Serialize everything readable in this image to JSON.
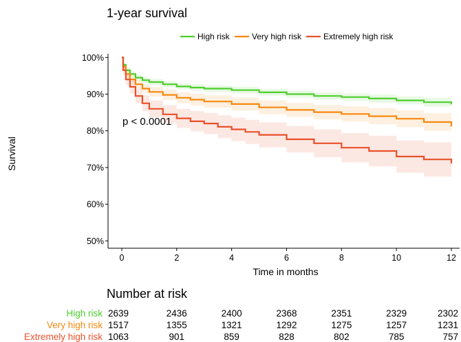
{
  "chart_data": {
    "type": "line",
    "title": "1-year survival",
    "xlabel": "Time in months",
    "ylabel": "Survival",
    "xlim": [
      -0.5,
      12.3
    ],
    "ylim": [
      0.48,
      1.01
    ],
    "x_ticks": [
      0,
      2,
      4,
      6,
      8,
      10,
      12
    ],
    "y_ticks": [
      0.5,
      0.6,
      0.7,
      0.8,
      0.9,
      1.0
    ],
    "y_tick_labels": [
      "50%",
      "60%",
      "70%",
      "80%",
      "90%",
      "100%"
    ],
    "legend_position": "top",
    "annotation": "p < 0.0001",
    "grid": false,
    "series": [
      {
        "name": "High risk",
        "color": "#4dce2d",
        "x": [
          0,
          0.05,
          0.15,
          0.3,
          0.5,
          0.75,
          1,
          1.5,
          2,
          2.5,
          3,
          4,
          5,
          6,
          7,
          8,
          9,
          10,
          11,
          12
        ],
        "y": [
          1.0,
          0.98,
          0.965,
          0.955,
          0.945,
          0.938,
          0.933,
          0.927,
          0.921,
          0.918,
          0.915,
          0.911,
          0.905,
          0.9,
          0.895,
          0.892,
          0.888,
          0.883,
          0.878,
          0.872
        ],
        "lower": [
          1.0,
          0.974,
          0.958,
          0.948,
          0.937,
          0.93,
          0.925,
          0.919,
          0.913,
          0.909,
          0.906,
          0.902,
          0.896,
          0.89,
          0.885,
          0.882,
          0.877,
          0.872,
          0.866,
          0.86
        ],
        "upper": [
          1.0,
          0.986,
          0.972,
          0.962,
          0.953,
          0.946,
          0.941,
          0.935,
          0.929,
          0.927,
          0.924,
          0.92,
          0.914,
          0.91,
          0.905,
          0.902,
          0.899,
          0.894,
          0.89,
          0.884
        ]
      },
      {
        "name": "Very high risk",
        "color": "#f6880f",
        "x": [
          0,
          0.05,
          0.15,
          0.3,
          0.5,
          0.75,
          1,
          1.5,
          2,
          2.5,
          3,
          4,
          5,
          6,
          7,
          8,
          9,
          10,
          11,
          12
        ],
        "y": [
          1.0,
          0.975,
          0.955,
          0.94,
          0.927,
          0.915,
          0.906,
          0.898,
          0.89,
          0.885,
          0.88,
          0.873,
          0.864,
          0.857,
          0.851,
          0.846,
          0.84,
          0.833,
          0.824,
          0.812
        ],
        "lower": [
          1.0,
          0.967,
          0.945,
          0.929,
          0.915,
          0.903,
          0.893,
          0.884,
          0.875,
          0.869,
          0.863,
          0.855,
          0.845,
          0.838,
          0.831,
          0.825,
          0.818,
          0.81,
          0.8,
          0.786
        ],
        "upper": [
          1.0,
          0.983,
          0.965,
          0.951,
          0.939,
          0.927,
          0.919,
          0.912,
          0.905,
          0.901,
          0.897,
          0.891,
          0.883,
          0.876,
          0.871,
          0.867,
          0.862,
          0.856,
          0.848,
          0.838
        ]
      },
      {
        "name": "Extremely high risk",
        "color": "#e8512a",
        "x": [
          0,
          0.05,
          0.15,
          0.3,
          0.5,
          0.75,
          1,
          1.5,
          2,
          2.5,
          3,
          3.5,
          4,
          4.5,
          5,
          6,
          7,
          8,
          9,
          10,
          11,
          12
        ],
        "y": [
          1.0,
          0.965,
          0.94,
          0.92,
          0.895,
          0.875,
          0.86,
          0.845,
          0.834,
          0.826,
          0.82,
          0.811,
          0.804,
          0.797,
          0.789,
          0.777,
          0.766,
          0.754,
          0.745,
          0.73,
          0.722,
          0.711
        ],
        "lower": [
          1.0,
          0.953,
          0.924,
          0.902,
          0.875,
          0.853,
          0.837,
          0.82,
          0.808,
          0.798,
          0.791,
          0.78,
          0.772,
          0.764,
          0.755,
          0.741,
          0.728,
          0.714,
          0.703,
          0.686,
          0.675,
          0.662
        ],
        "upper": [
          1.0,
          0.977,
          0.956,
          0.938,
          0.915,
          0.897,
          0.883,
          0.87,
          0.86,
          0.854,
          0.849,
          0.842,
          0.836,
          0.83,
          0.823,
          0.813,
          0.804,
          0.794,
          0.787,
          0.774,
          0.769,
          0.76
        ]
      }
    ]
  },
  "risk_table": {
    "title": "Number at risk",
    "times": [
      0,
      2,
      4,
      6,
      8,
      10,
      12
    ],
    "rows": [
      {
        "label": "High risk",
        "color": "#4dce2d",
        "values": [
          "2639",
          "2436",
          "2400",
          "2368",
          "2351",
          "2329",
          "2302"
        ]
      },
      {
        "label": "Very high risk",
        "color": "#f6880f",
        "values": [
          "1517",
          "1355",
          "1321",
          "1292",
          "1275",
          "1257",
          "1231"
        ]
      },
      {
        "label": "Extremely high risk",
        "color": "#e8512a",
        "values": [
          "1063",
          "901",
          "859",
          "828",
          "802",
          "785",
          "757"
        ]
      }
    ]
  }
}
